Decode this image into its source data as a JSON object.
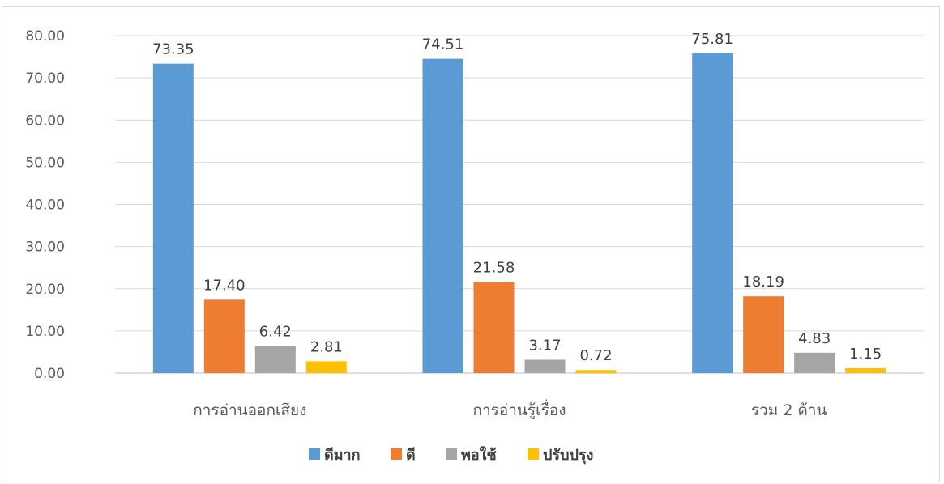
{
  "chart_data": {
    "type": "bar",
    "categories": [
      "การอ่านออกเสียง",
      "การอ่านรู้เรื่อง",
      "รวม 2 ด้าน"
    ],
    "series": [
      {
        "name": "ดีมาก",
        "values": [
          73.35,
          74.51,
          75.81
        ],
        "labels": [
          "73.35",
          "74.51",
          "75.81"
        ],
        "color": "#5b9bd5"
      },
      {
        "name": "ดี",
        "values": [
          17.4,
          21.58,
          18.19
        ],
        "labels": [
          "17.40",
          "21.58",
          "18.19"
        ],
        "color": "#ed7d31"
      },
      {
        "name": "พอใช้",
        "values": [
          6.42,
          3.17,
          4.83
        ],
        "labels": [
          "6.42",
          "3.17",
          "4.83"
        ],
        "color": "#a5a5a5"
      },
      {
        "name": "ปรับปรุง",
        "values": [
          2.81,
          0.72,
          1.15
        ],
        "labels": [
          "2.81",
          "0.72",
          "1.15"
        ],
        "color": "#ffc000"
      }
    ],
    "ylim": [
      0,
      80
    ],
    "yticks": [
      "0.00",
      "10.00",
      "20.00",
      "30.00",
      "40.00",
      "50.00",
      "60.00",
      "70.00",
      "80.00"
    ],
    "grid": true,
    "legend": "bottom",
    "title": "",
    "xlabel": "",
    "ylabel": ""
  }
}
